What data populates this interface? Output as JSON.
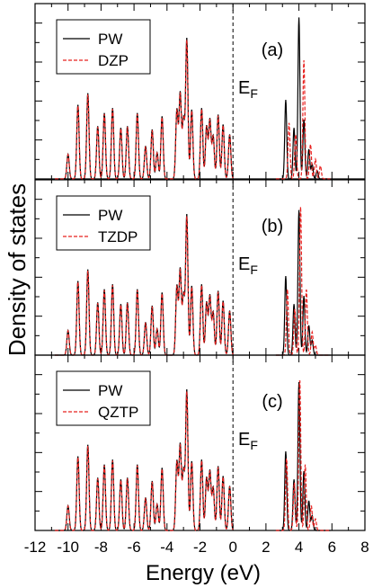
{
  "chart_data": {
    "type": "line",
    "xlabel": "Energy (eV)",
    "ylabel": "Density of states",
    "xlim": [
      -12,
      8
    ],
    "x_ticks": [
      "-12",
      "-10",
      "-8",
      "-6",
      "-4",
      "-2",
      "0",
      "2",
      "4",
      "6",
      "8"
    ],
    "fermi_level": {
      "x": 0,
      "label": "E",
      "subscript": "F",
      "style": "dashed"
    },
    "colors": {
      "PW": "#000000",
      "basis": "#e8201e"
    },
    "panels": [
      {
        "label": "(a)",
        "legend": [
          "PW",
          "DZP"
        ],
        "ylim": [
          0,
          1.0
        ],
        "peaks_valence": [
          [
            -10.0,
            0.15
          ],
          [
            -9.4,
            0.45
          ],
          [
            -8.8,
            0.52
          ],
          [
            -8.2,
            0.32
          ],
          [
            -7.8,
            0.4
          ],
          [
            -7.3,
            0.43
          ],
          [
            -6.8,
            0.31
          ],
          [
            -6.4,
            0.32
          ],
          [
            -5.8,
            0.4
          ],
          [
            -5.3,
            0.2
          ],
          [
            -4.9,
            0.3
          ],
          [
            -4.6,
            0.16
          ],
          [
            -4.3,
            0.38
          ],
          [
            -3.4,
            0.42
          ],
          [
            -3.2,
            0.52
          ],
          [
            -3.0,
            0.36
          ],
          [
            -2.8,
            0.85
          ],
          [
            -2.5,
            0.42
          ],
          [
            -1.9,
            0.43
          ],
          [
            -1.6,
            0.32
          ],
          [
            -1.4,
            0.36
          ],
          [
            -1.2,
            0.26
          ],
          [
            -0.9,
            0.39
          ],
          [
            -0.6,
            0.33
          ],
          [
            -0.2,
            0.27
          ]
        ],
        "peaks_conduction_pw": [
          [
            3.2,
            0.48
          ],
          [
            3.7,
            0.31
          ],
          [
            4.0,
            0.98
          ],
          [
            4.3,
            0.36
          ],
          [
            4.6,
            0.18
          ],
          [
            4.8,
            0.09
          ],
          [
            5.1,
            0.05
          ]
        ],
        "peaks_conduction_basis": [
          [
            3.4,
            0.34
          ],
          [
            3.8,
            0.27
          ],
          [
            4.3,
            0.72
          ],
          [
            4.7,
            0.21
          ],
          [
            5.0,
            0.12
          ],
          [
            5.3,
            0.08
          ]
        ]
      },
      {
        "label": "(b)",
        "legend": [
          "PW",
          "TZDP"
        ],
        "ylim": [
          0,
          1.0
        ],
        "peaks_valence": [
          [
            -10.0,
            0.15
          ],
          [
            -9.4,
            0.45
          ],
          [
            -8.8,
            0.52
          ],
          [
            -8.2,
            0.32
          ],
          [
            -7.8,
            0.4
          ],
          [
            -7.3,
            0.43
          ],
          [
            -6.8,
            0.31
          ],
          [
            -6.4,
            0.32
          ],
          [
            -5.8,
            0.4
          ],
          [
            -5.3,
            0.2
          ],
          [
            -4.9,
            0.3
          ],
          [
            -4.6,
            0.16
          ],
          [
            -4.3,
            0.38
          ],
          [
            -3.4,
            0.42
          ],
          [
            -3.2,
            0.52
          ],
          [
            -3.0,
            0.36
          ],
          [
            -2.8,
            0.85
          ],
          [
            -2.5,
            0.42
          ],
          [
            -1.9,
            0.43
          ],
          [
            -1.6,
            0.32
          ],
          [
            -1.4,
            0.36
          ],
          [
            -1.2,
            0.26
          ],
          [
            -0.9,
            0.39
          ],
          [
            -0.6,
            0.33
          ],
          [
            -0.2,
            0.27
          ]
        ],
        "peaks_conduction_pw": [
          [
            3.2,
            0.48
          ],
          [
            3.7,
            0.31
          ],
          [
            4.0,
            0.88
          ],
          [
            4.3,
            0.36
          ],
          [
            4.6,
            0.18
          ],
          [
            4.8,
            0.09
          ]
        ],
        "peaks_conduction_basis": [
          [
            3.3,
            0.4
          ],
          [
            3.75,
            0.28
          ],
          [
            4.1,
            0.9
          ],
          [
            4.45,
            0.4
          ],
          [
            4.8,
            0.14
          ],
          [
            5.0,
            0.06
          ]
        ]
      },
      {
        "label": "(c)",
        "legend": [
          "PW",
          "QZTP"
        ],
        "ylim": [
          0,
          1.0
        ],
        "peaks_valence": [
          [
            -10.0,
            0.15
          ],
          [
            -9.4,
            0.45
          ],
          [
            -8.8,
            0.52
          ],
          [
            -8.2,
            0.32
          ],
          [
            -7.8,
            0.4
          ],
          [
            -7.3,
            0.43
          ],
          [
            -6.8,
            0.31
          ],
          [
            -6.4,
            0.32
          ],
          [
            -5.8,
            0.4
          ],
          [
            -5.3,
            0.2
          ],
          [
            -4.9,
            0.3
          ],
          [
            -4.6,
            0.16
          ],
          [
            -4.3,
            0.38
          ],
          [
            -3.4,
            0.42
          ],
          [
            -3.2,
            0.52
          ],
          [
            -3.0,
            0.36
          ],
          [
            -2.8,
            0.85
          ],
          [
            -2.5,
            0.42
          ],
          [
            -1.9,
            0.43
          ],
          [
            -1.6,
            0.32
          ],
          [
            -1.4,
            0.36
          ],
          [
            -1.2,
            0.26
          ],
          [
            -0.9,
            0.39
          ],
          [
            -0.6,
            0.33
          ],
          [
            -0.2,
            0.27
          ]
        ],
        "peaks_conduction_pw": [
          [
            3.2,
            0.48
          ],
          [
            3.7,
            0.31
          ],
          [
            4.0,
            0.9
          ],
          [
            4.3,
            0.36
          ],
          [
            4.6,
            0.18
          ],
          [
            4.8,
            0.09
          ]
        ],
        "peaks_conduction_basis": [
          [
            3.25,
            0.44
          ],
          [
            3.72,
            0.29
          ],
          [
            4.05,
            0.92
          ],
          [
            4.38,
            0.4
          ],
          [
            4.75,
            0.15
          ],
          [
            5.0,
            0.07
          ]
        ]
      }
    ]
  }
}
